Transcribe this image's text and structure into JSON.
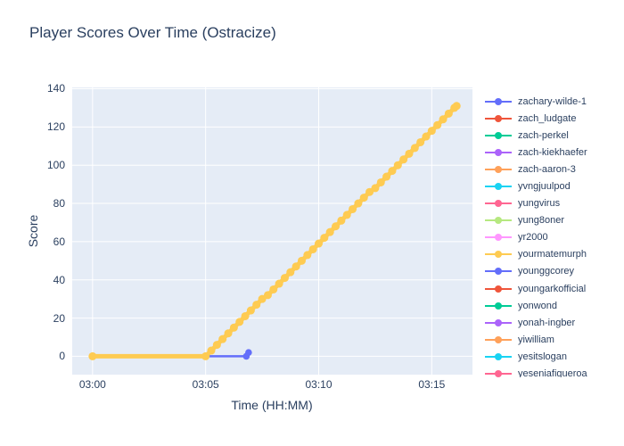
{
  "title": "Player Scores Over Time (Ostracize)",
  "axes": {
    "x_label": "Time (HH:MM)",
    "y_label": "Score",
    "x_ticks": [
      {
        "label": "03:00",
        "min": 0
      },
      {
        "label": "03:05",
        "min": 5
      },
      {
        "label": "03:10",
        "min": 10
      },
      {
        "label": "03:15",
        "min": 15
      }
    ],
    "y_ticks": [
      0,
      20,
      40,
      60,
      80,
      100,
      120,
      140
    ]
  },
  "colors": {
    "paper_bg": "#ffffff",
    "plot_bg": "#e5ecf6",
    "grid": "#ffffff",
    "text": "#2a3f5f"
  },
  "chart_data": {
    "type": "line",
    "title": "Player Scores Over Time (Ostracize)",
    "xlabel": "Time (HH:MM)",
    "ylabel": "Score",
    "x_unit": "minutes after 03:00",
    "x_tick_labels": [
      "03:00",
      "03:05",
      "03:10",
      "03:15"
    ],
    "xlim": [
      -0.9,
      16.8
    ],
    "ylim": [
      -9.6,
      140.7
    ],
    "grid": true,
    "legend_position": "right",
    "legend_items": [
      {
        "name": "zachary-wilde-1",
        "color": "#636EFA"
      },
      {
        "name": "zach_ludgate",
        "color": "#EF553B"
      },
      {
        "name": "zach-perkel",
        "color": "#00CC96"
      },
      {
        "name": "zach-kiekhaefer",
        "color": "#AB63FA"
      },
      {
        "name": "zach-aaron-3",
        "color": "#FFA15A"
      },
      {
        "name": "yvngjuulpod",
        "color": "#19D3F3"
      },
      {
        "name": "yungvirus",
        "color": "#FF6692"
      },
      {
        "name": "yung8oner",
        "color": "#B6E880"
      },
      {
        "name": "yr2000",
        "color": "#FF97FF"
      },
      {
        "name": "yourmatemurph",
        "color": "#FECB52"
      },
      {
        "name": "younggcorey",
        "color": "#636EFA"
      },
      {
        "name": "youngarkofficial",
        "color": "#EF553B"
      },
      {
        "name": "yonwond",
        "color": "#00CC96"
      },
      {
        "name": "yonah-ingber",
        "color": "#AB63FA"
      },
      {
        "name": "yiwilliam",
        "color": "#FFA15A"
      },
      {
        "name": "yesitslogan",
        "color": "#19D3F3"
      },
      {
        "name": "yeseniafigueroa",
        "color": "#FF6692"
      }
    ],
    "series": [
      {
        "name": "zachary-wilde-1",
        "color": "#636EFA",
        "mode": "lines+markers",
        "line_width": 2.5,
        "marker_r": 3.8,
        "points": [
          [
            0,
            0
          ],
          [
            5,
            0
          ],
          [
            6.8,
            0
          ],
          [
            6.9,
            2
          ]
        ]
      },
      {
        "name": "yourmatemurph",
        "color": "#FECB52",
        "mode": "lines+markers",
        "line_width": 5,
        "marker_r": 4.5,
        "points": [
          [
            0,
            0
          ],
          [
            5,
            0
          ],
          [
            5.25,
            3
          ],
          [
            5.5,
            6
          ],
          [
            5.75,
            9
          ],
          [
            6,
            12
          ],
          [
            6.25,
            15
          ],
          [
            6.5,
            18
          ],
          [
            6.75,
            21
          ],
          [
            7,
            24
          ],
          [
            7.25,
            27
          ],
          [
            7.5,
            30
          ],
          [
            7.75,
            32
          ],
          [
            8,
            35
          ],
          [
            8.25,
            38
          ],
          [
            8.5,
            41
          ],
          [
            8.75,
            44
          ],
          [
            9,
            47
          ],
          [
            9.25,
            50
          ],
          [
            9.5,
            53
          ],
          [
            9.75,
            56
          ],
          [
            10,
            59
          ],
          [
            10.25,
            62
          ],
          [
            10.5,
            65
          ],
          [
            10.75,
            68
          ],
          [
            11,
            71
          ],
          [
            11.25,
            74
          ],
          [
            11.5,
            77
          ],
          [
            11.75,
            80
          ],
          [
            12,
            83
          ],
          [
            12.25,
            86
          ],
          [
            12.5,
            88
          ],
          [
            12.75,
            91
          ],
          [
            13,
            94
          ],
          [
            13.25,
            97
          ],
          [
            13.5,
            100
          ],
          [
            13.75,
            103
          ],
          [
            14,
            106
          ],
          [
            14.25,
            109
          ],
          [
            14.5,
            112
          ],
          [
            14.75,
            115
          ],
          [
            15,
            118
          ],
          [
            15.25,
            121
          ],
          [
            15.5,
            124
          ],
          [
            15.75,
            127
          ],
          [
            16,
            130
          ],
          [
            16.1,
            131
          ]
        ]
      }
    ]
  }
}
